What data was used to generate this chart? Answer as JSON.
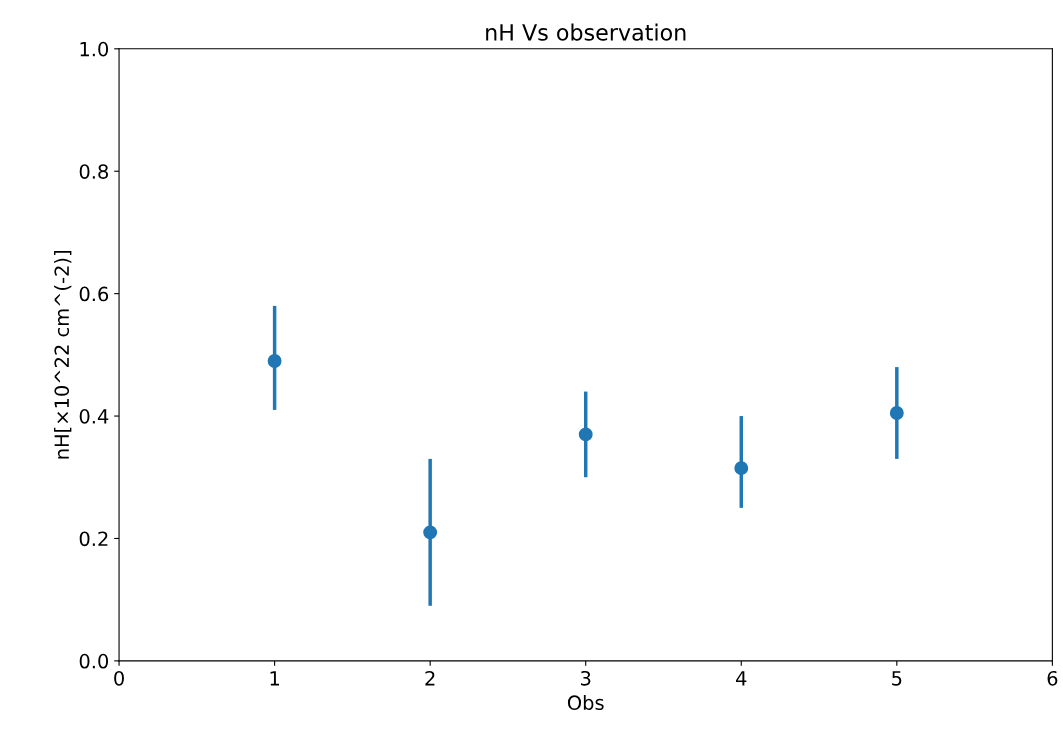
{
  "chart_data": {
    "type": "scatter",
    "title": "nH Vs observation",
    "xlabel": "Obs",
    "ylabel": "nH[×10^22 cm^(-2)]",
    "x": [
      1,
      2,
      3,
      4,
      5
    ],
    "values": [
      0.49,
      0.21,
      0.37,
      0.315,
      0.405
    ],
    "errors": [
      [
        0.41,
        0.58
      ],
      [
        0.09,
        0.33
      ],
      [
        0.3,
        0.44
      ],
      [
        0.25,
        0.4
      ],
      [
        0.33,
        0.48
      ]
    ],
    "color": "#1f77b4",
    "marker": "circle",
    "xlim": [
      0,
      6
    ],
    "xticks": [
      0,
      1,
      2,
      3,
      4,
      5,
      6
    ],
    "ylim": [
      0,
      1
    ],
    "yticks": [
      {
        "value": 0,
        "label": "0.0"
      },
      0.2,
      0.4,
      0.6,
      0.8,
      {
        "value": 1,
        "label": "1.0"
      }
    ],
    "grid": false
  }
}
